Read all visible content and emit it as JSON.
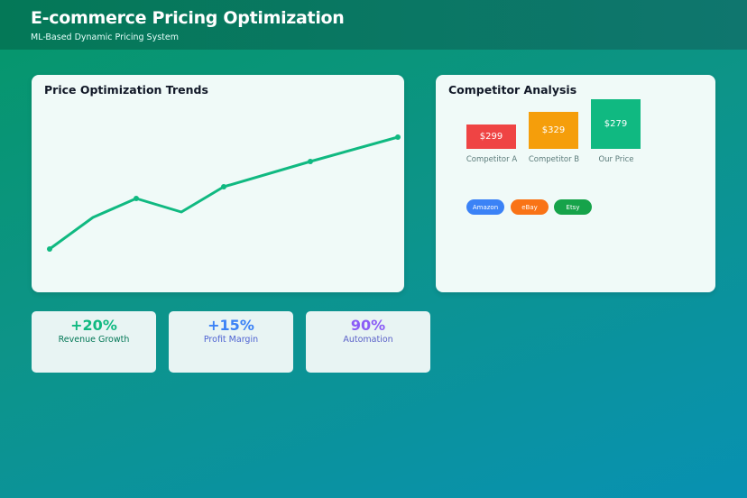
{
  "header": {
    "title": "E-commerce Pricing Optimization",
    "subtitle": "ML-Based Dynamic Pricing System"
  },
  "trends": {
    "title": "Price Optimization Trends"
  },
  "chart_data": {
    "type": "line",
    "title": "Price Optimization Trends",
    "x": [
      1,
      2,
      3,
      4,
      5,
      6,
      7
    ],
    "values": [
      0,
      35,
      56,
      41,
      69,
      97,
      124
    ],
    "markers": [
      0,
      2,
      4,
      5,
      6
    ],
    "color": "#10b981",
    "grid": false,
    "axes": false
  },
  "competitor": {
    "title": "Competitor Analysis",
    "bars": [
      {
        "label": "Competitor A",
        "price": "$299",
        "color": "#ef4444"
      },
      {
        "label": "Competitor B",
        "price": "$329",
        "color": "#f59e0b"
      },
      {
        "label": "Our Price",
        "price": "$279",
        "color": "#10b981"
      }
    ],
    "platforms": [
      {
        "label": "Amazon",
        "color": "#3b82f6"
      },
      {
        "label": "eBay",
        "color": "#f97316"
      },
      {
        "label": "Etsy",
        "color": "#16a34a"
      }
    ]
  },
  "stats": [
    {
      "value": "+20%",
      "label": "Revenue Growth",
      "color": "#10b981",
      "label_color": "#047857"
    },
    {
      "value": "+15%",
      "label": "Profit Margin",
      "color": "#3b82f6",
      "label_color": "#4f63d2"
    },
    {
      "value": "90%",
      "label": "Automation",
      "color": "#8b5cf6",
      "label_color": "#5b61c8"
    }
  ]
}
